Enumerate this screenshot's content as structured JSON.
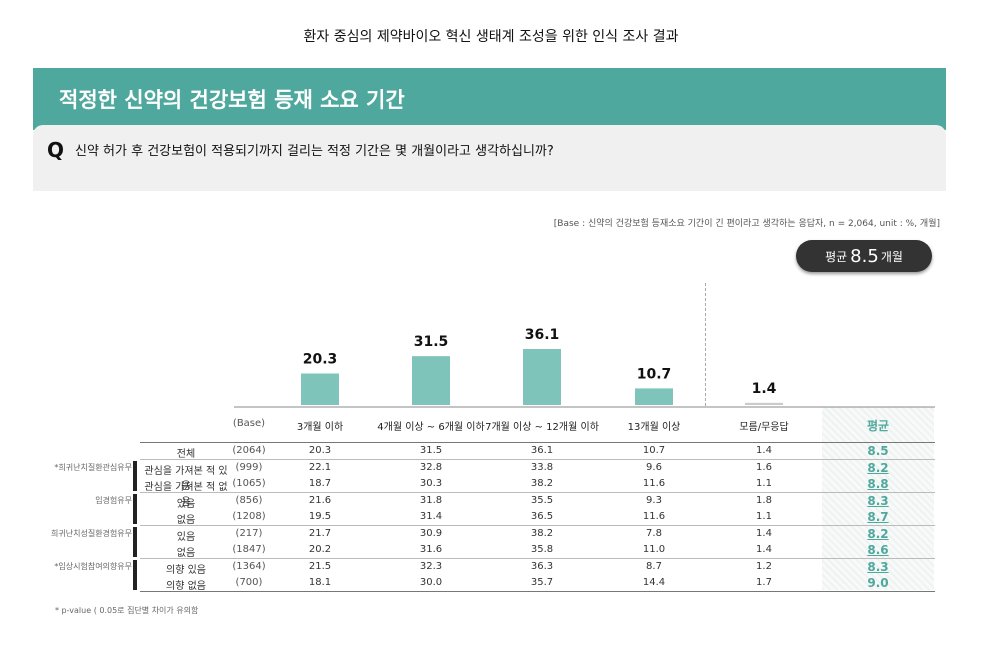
{
  "header": {
    "top_title": "환자 중심의 제약바이오 혁신 생태계 조성을 위한 인식 조사 결과"
  },
  "banner": {
    "title": "적정한 신약의 건강보험 등재 소요 기간"
  },
  "question": {
    "icon": "Q",
    "text": "신약 허가 후 건강보험이 적용되기까지 걸리는 적정 기간은 몇 개월이라고 생각하십니까?"
  },
  "base_note": "[Base : 신약의 건강보험 등재소요 기간이 긴 편이라고 생각하는 응답자, n = 2,064, unit : %, 개월]",
  "average_pill": {
    "prefix": "평균",
    "value": "8.5",
    "suffix": "개월"
  },
  "colors": {
    "bar": "#7fc4bb",
    "dk_bar": "#c9cccb",
    "accent": "#4fa89d"
  },
  "chart_data": {
    "type": "bar",
    "categories": [
      "3개월 이하",
      "4개월 이상 ~ 6개월 이하",
      "7개월 이상 ~ 12개월 이하",
      "13개월 이상",
      "모름/무응답"
    ],
    "values": [
      20.3,
      31.5,
      36.1,
      10.7,
      1.4
    ],
    "value_labels": [
      "20.3",
      "31.5",
      "36.1",
      "10.7",
      "1.4"
    ],
    "ylim": [
      0,
      40
    ]
  },
  "table": {
    "base_header": "(Base)",
    "avg_header": "평균",
    "groups": [
      {
        "label": "",
        "star": false
      },
      {
        "label": "희귀난치질환관심유무",
        "star": true
      },
      {
        "label": "임경험유무",
        "star": false
      },
      {
        "label": "희귀난치성질환경험유무",
        "star": false
      },
      {
        "label": "임상시험참여의향유무",
        "star": true
      }
    ],
    "rows": [
      {
        "label": "전체",
        "base": "(2064)",
        "vals": [
          "20.3",
          "31.5",
          "36.1",
          "10.7",
          "1.4"
        ],
        "avg": "8.5",
        "ul": false
      },
      {
        "label": "관심을 가져본 적 있음",
        "base": "(999)",
        "vals": [
          "22.1",
          "32.8",
          "33.8",
          "9.6",
          "1.6"
        ],
        "avg": "8.2",
        "ul": true
      },
      {
        "label": "관심을 가져본 적 없음",
        "base": "(1065)",
        "vals": [
          "18.7",
          "30.3",
          "38.2",
          "11.6",
          "1.1"
        ],
        "avg": "8.8",
        "ul": true
      },
      {
        "label": "있음",
        "base": "(856)",
        "vals": [
          "21.6",
          "31.8",
          "35.5",
          "9.3",
          "1.8"
        ],
        "avg": "8.3",
        "ul": true
      },
      {
        "label": "없음",
        "base": "(1208)",
        "vals": [
          "19.5",
          "31.4",
          "36.5",
          "11.6",
          "1.1"
        ],
        "avg": "8.7",
        "ul": true
      },
      {
        "label": "있음",
        "base": "(217)",
        "vals": [
          "21.7",
          "30.9",
          "38.2",
          "7.8",
          "1.4"
        ],
        "avg": "8.2",
        "ul": true
      },
      {
        "label": "없음",
        "base": "(1847)",
        "vals": [
          "20.2",
          "31.6",
          "35.8",
          "11.0",
          "1.4"
        ],
        "avg": "8.6",
        "ul": true
      },
      {
        "label": "의향 있음",
        "base": "(1364)",
        "vals": [
          "21.5",
          "32.3",
          "36.3",
          "8.7",
          "1.2"
        ],
        "avg": "8.3",
        "ul": true
      },
      {
        "label": "의향 없음",
        "base": "(700)",
        "vals": [
          "18.1",
          "30.0",
          "35.7",
          "14.4",
          "1.7"
        ],
        "avg": "9.0",
        "ul": false
      }
    ]
  },
  "footnote": "* p-value ( 0.05로 집단별 차이가 유의함"
}
